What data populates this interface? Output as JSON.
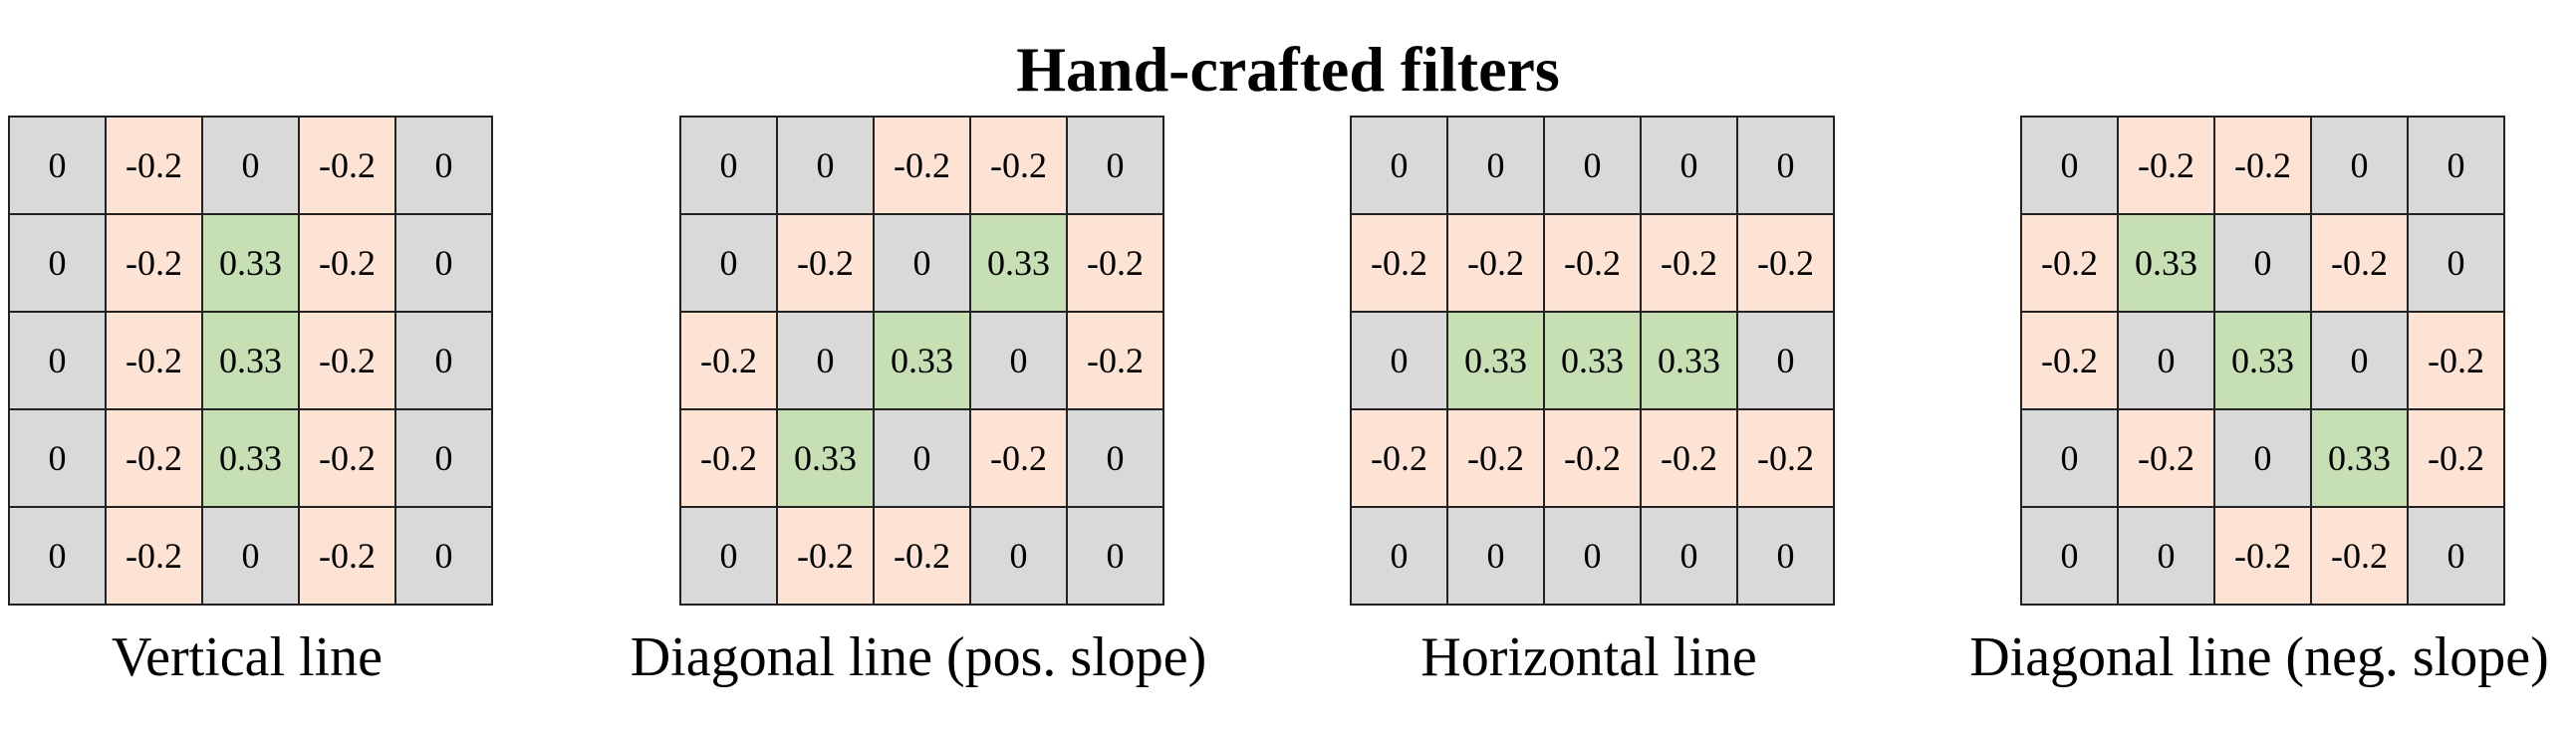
{
  "title": "Hand-crafted filters",
  "colors": {
    "zero": "#d9d9d9",
    "negative": "#fce3d4",
    "positive": "#c6e0b4",
    "border": "#222222"
  },
  "filters": [
    {
      "caption": "Vertical line",
      "cells": [
        [
          "0",
          "-0.2",
          "0",
          "-0.2",
          "0"
        ],
        [
          "0",
          "-0.2",
          "0.33",
          "-0.2",
          "0"
        ],
        [
          "0",
          "-0.2",
          "0.33",
          "-0.2",
          "0"
        ],
        [
          "0",
          "-0.2",
          "0.33",
          "-0.2",
          "0"
        ],
        [
          "0",
          "-0.2",
          "0",
          "-0.2",
          "0"
        ]
      ]
    },
    {
      "caption": "Diagonal line (pos. slope)",
      "cells": [
        [
          "0",
          "0",
          "-0.2",
          "-0.2",
          "0"
        ],
        [
          "0",
          "-0.2",
          "0",
          "0.33",
          "-0.2"
        ],
        [
          "-0.2",
          "0",
          "0.33",
          "0",
          "-0.2"
        ],
        [
          "-0.2",
          "0.33",
          "0",
          "-0.2",
          "0"
        ],
        [
          "0",
          "-0.2",
          "-0.2",
          "0",
          "0"
        ]
      ]
    },
    {
      "caption": "Horizontal line",
      "cells": [
        [
          "0",
          "0",
          "0",
          "0",
          "0"
        ],
        [
          "-0.2",
          "-0.2",
          "-0.2",
          "-0.2",
          "-0.2"
        ],
        [
          "0",
          "0.33",
          "0.33",
          "0.33",
          "0"
        ],
        [
          "-0.2",
          "-0.2",
          "-0.2",
          "-0.2",
          "-0.2"
        ],
        [
          "0",
          "0",
          "0",
          "0",
          "0"
        ]
      ]
    },
    {
      "caption": "Diagonal line (neg. slope)",
      "cells": [
        [
          "0",
          "-0.2",
          "-0.2",
          "0",
          "0"
        ],
        [
          "-0.2",
          "0.33",
          "0",
          "-0.2",
          "0"
        ],
        [
          "-0.2",
          "0",
          "0.33",
          "0",
          "-0.2"
        ],
        [
          "0",
          "-0.2",
          "0",
          "0.33",
          "-0.2"
        ],
        [
          "0",
          "0",
          "-0.2",
          "-0.2",
          "0"
        ]
      ]
    }
  ]
}
